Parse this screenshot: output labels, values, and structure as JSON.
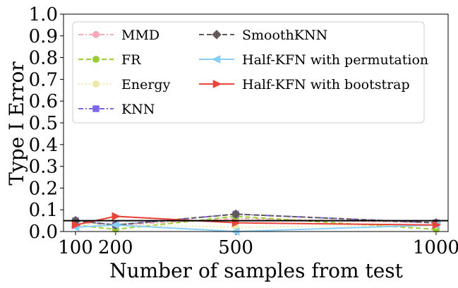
{
  "chart_data": {
    "type": "line",
    "title": "",
    "xlabel": "Number of samples from test",
    "ylabel": "Type I Error",
    "x": [
      100,
      200,
      500,
      1000
    ],
    "xticks": [
      "100",
      "200",
      "500",
      "1000"
    ],
    "xlim": [
      70,
      1030
    ],
    "ylim": [
      0.0,
      1.0
    ],
    "yticks": [
      "0.0",
      "0.1",
      "0.2",
      "0.3",
      "0.4",
      "0.5",
      "0.6",
      "0.7",
      "0.8",
      "0.9",
      "1.0"
    ],
    "reference_line": 0.05,
    "legend_location": "upper center",
    "series": [
      {
        "name": "MMD",
        "values": [
          0.04,
          0.03,
          0.06,
          0.04
        ],
        "color": "#f4a9b9",
        "dash": "dashdot",
        "marker": "circle"
      },
      {
        "name": "FR",
        "values": [
          0.03,
          0.01,
          0.07,
          0.01
        ],
        "color": "#9acd32",
        "dash": "dashed",
        "marker": "circle"
      },
      {
        "name": "Energy",
        "values": [
          0.04,
          0.03,
          0.02,
          0.03
        ],
        "color": "#eee8aa",
        "dash": "dotted",
        "marker": "circle"
      },
      {
        "name": "KNN",
        "values": [
          0.05,
          0.03,
          0.08,
          0.04
        ],
        "color": "#7b68ee",
        "dash": "dashdot",
        "marker": "square"
      },
      {
        "name": "SmoothKNN",
        "values": [
          0.05,
          0.03,
          0.08,
          0.04
        ],
        "color": "#635a57",
        "dash": "dashed",
        "marker": "diamond"
      },
      {
        "name": "Half-KFN with permutation",
        "values": [
          0.02,
          0.03,
          0.0,
          0.03
        ],
        "color": "#87cefa",
        "dash": "solid",
        "marker": "triangle-left"
      },
      {
        "name": "Half-KFN with bootstrap",
        "values": [
          0.03,
          0.07,
          0.04,
          0.03
        ],
        "color": "#e8443a",
        "dash": "solid",
        "marker": "triangle-right"
      }
    ]
  }
}
